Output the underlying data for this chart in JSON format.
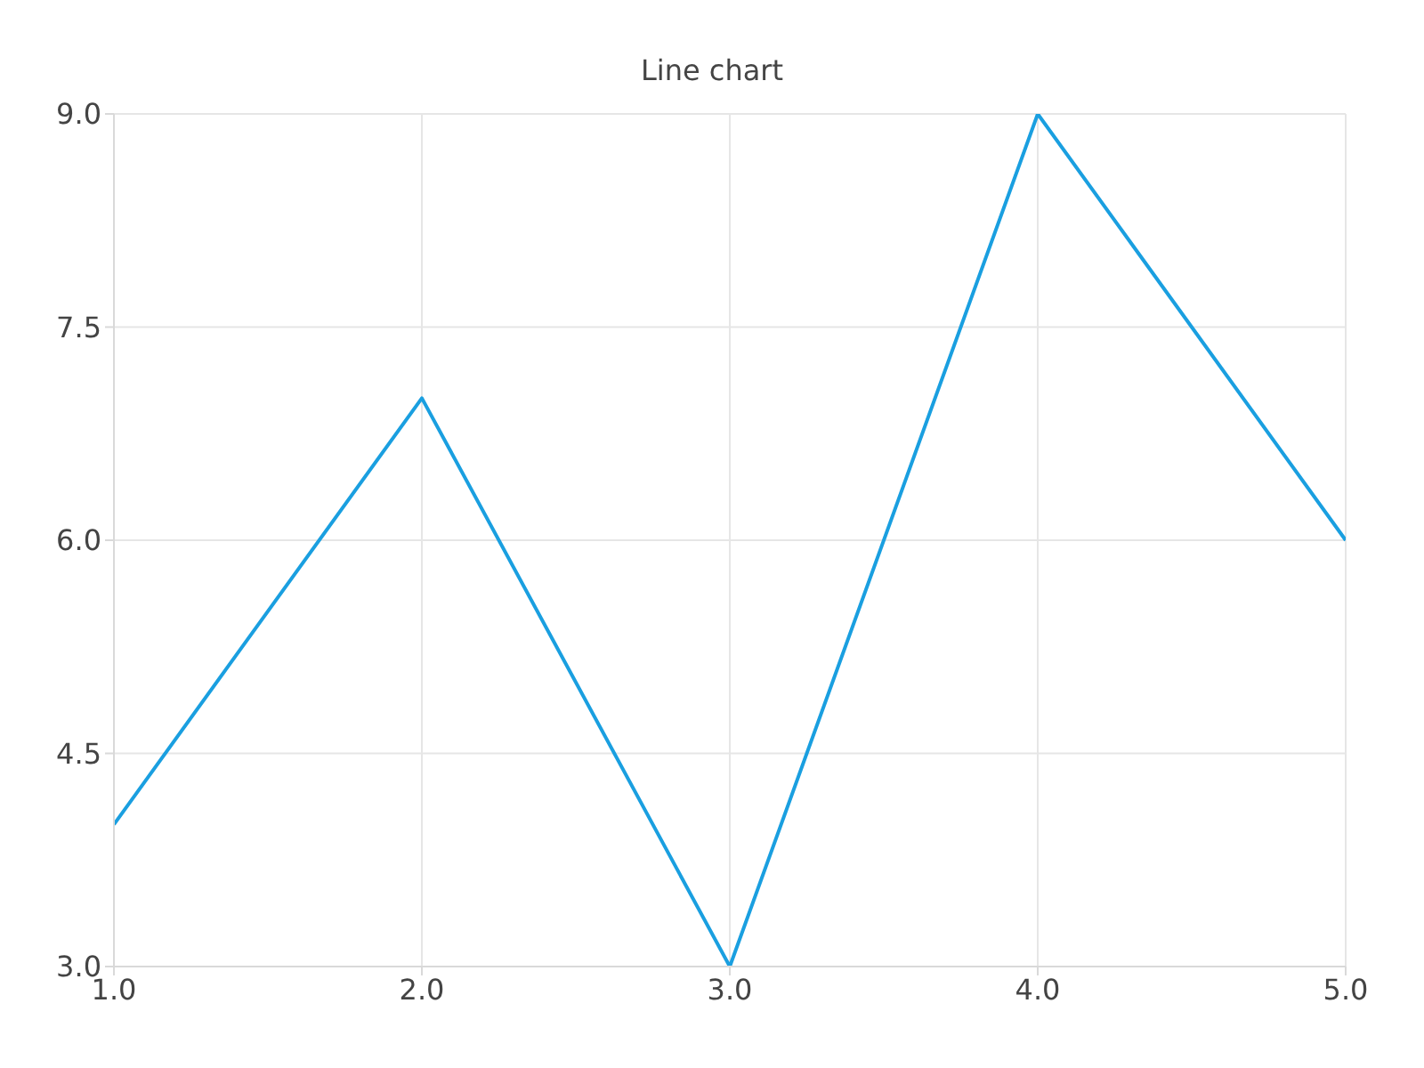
{
  "chart_data": {
    "type": "line",
    "title": "Line chart",
    "x": [
      1,
      2,
      3,
      4,
      5
    ],
    "series": [
      {
        "color": "#1a9fe0",
        "values": [
          4,
          7,
          3,
          9,
          6
        ]
      }
    ],
    "xlim": [
      1,
      5
    ],
    "ylim": [
      3,
      9
    ],
    "xticks": [
      {
        "value": 1,
        "label": "1.0"
      },
      {
        "value": 2,
        "label": "2.0"
      },
      {
        "value": 3,
        "label": "3.0"
      },
      {
        "value": 4,
        "label": "4.0"
      },
      {
        "value": 5,
        "label": "5.0"
      }
    ],
    "yticks": [
      {
        "value": 3,
        "label": "3.0"
      },
      {
        "value": 4.5,
        "label": "4.5"
      },
      {
        "value": 6,
        "label": "6.0"
      },
      {
        "value": 7.5,
        "label": "7.5"
      },
      {
        "value": 9,
        "label": "9.0"
      }
    ],
    "grid": true
  }
}
